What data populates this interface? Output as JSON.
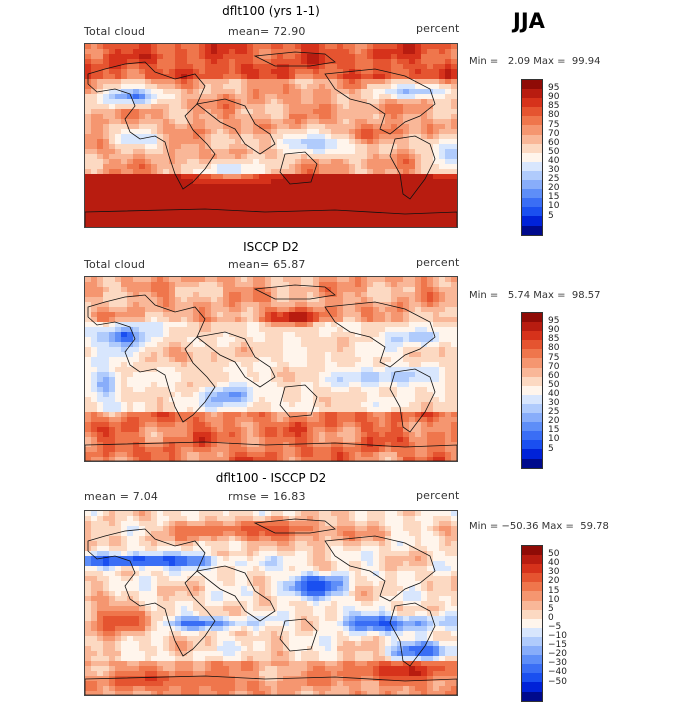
{
  "season": "JJA",
  "colors": {
    "abs_scale": [
      "#000a8c",
      "#0022d8",
      "#1a4ff0",
      "#3a6ef5",
      "#5e8ef8",
      "#88adfa",
      "#b0cbfc",
      "#d8e6fd",
      "#fff5ec",
      "#fcd9c2",
      "#f9b798",
      "#f59670",
      "#ef764c",
      "#e55430",
      "#d6321b",
      "#b81c10",
      "#8f0b06"
    ],
    "diff_scale": [
      "#000a8c",
      "#0022d8",
      "#1a4ff0",
      "#3a6ef5",
      "#5e8ef8",
      "#88adfa",
      "#b0cbfc",
      "#d8e6fd",
      "#fff5ec",
      "#fcd9c2",
      "#f9b798",
      "#f59670",
      "#ef764c",
      "#e55430",
      "#d6321b",
      "#b81c10",
      "#8f0b06"
    ]
  },
  "panels": [
    {
      "title": "dflt100 (yrs 1-1)",
      "left_label": "Total cloud",
      "center_label": "mean=  72.90",
      "right_label": "percent",
      "minmax": "Min =   2.09 Max =  99.94",
      "colorbar_labels": [
        "95",
        "90",
        "85",
        "80",
        "75",
        "70",
        "60",
        "50",
        "40",
        "30",
        "25",
        "20",
        "15",
        "10",
        "5"
      ],
      "field": "model"
    },
    {
      "title": "ISCCP D2",
      "left_label": "Total cloud",
      "center_label": "mean=  65.87",
      "right_label": "percent",
      "minmax": "Min =   5.74 Max =  98.57",
      "colorbar_labels": [
        "95",
        "90",
        "85",
        "80",
        "75",
        "70",
        "60",
        "50",
        "40",
        "30",
        "25",
        "20",
        "15",
        "10",
        "5"
      ],
      "field": "obs"
    },
    {
      "title": "dflt100 - ISCCP D2",
      "left_label": "mean =    7.04",
      "center_label": "rmse =  16.83",
      "right_label": "percent",
      "minmax": "Min = −50.36 Max =  59.78",
      "colorbar_labels": [
        "50",
        "40",
        "30",
        "20",
        "15",
        "10",
        "5",
        "0",
        "−5",
        "−10",
        "−15",
        "−20",
        "−30",
        "−40",
        "−50"
      ],
      "field": "diff"
    }
  ]
}
